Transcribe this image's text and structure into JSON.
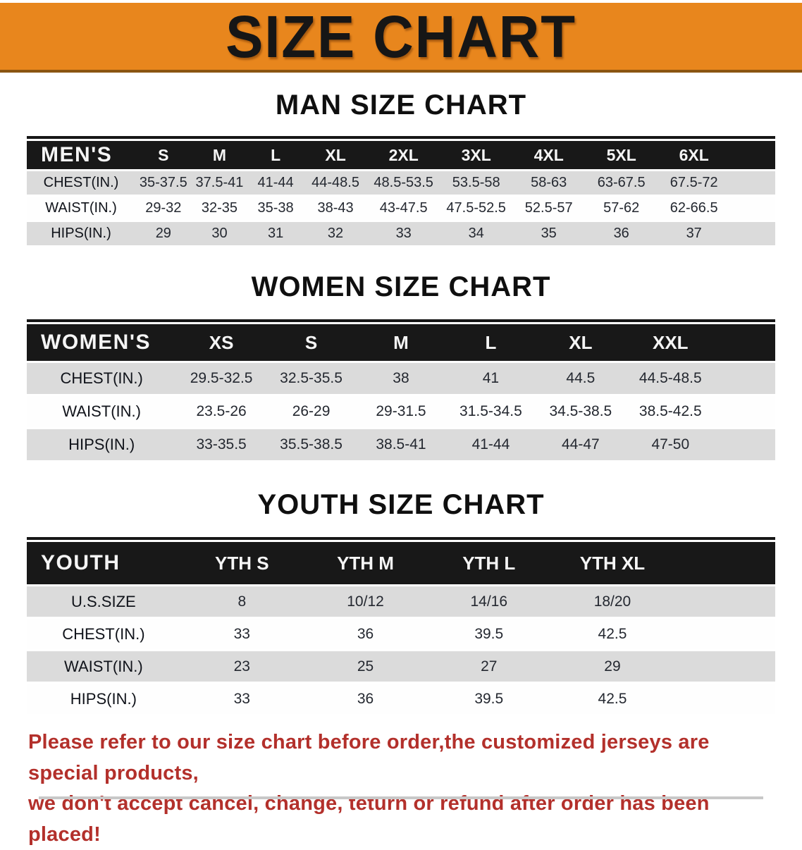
{
  "banner": {
    "title": "SIZE CHART",
    "bg_color": "#E8861D",
    "text_color": "#161616"
  },
  "sections": [
    {
      "heading": "MAN SIZE CHART",
      "table": {
        "name": "mens-size-table",
        "header_label": "MEN'S",
        "columns": [
          "S",
          "M",
          "L",
          "XL",
          "2XL",
          "3XL",
          "4XL",
          "5XL",
          "6XL"
        ],
        "rows": [
          {
            "label": "CHEST(IN.)",
            "values": [
              "35-37.5",
              "37.5-41",
              "41-44",
              "44-48.5",
              "48.5-53.5",
              "53.5-58",
              "58-63",
              "63-67.5",
              "67.5-72"
            ]
          },
          {
            "label": "WAIST(IN.)",
            "values": [
              "29-32",
              "32-35",
              "35-38",
              "38-43",
              "43-47.5",
              "47.5-52.5",
              "52.5-57",
              "57-62",
              "62-66.5"
            ]
          },
          {
            "label": "HIPS(IN.)",
            "values": [
              "29",
              "30",
              "31",
              "32",
              "33",
              "34",
              "35",
              "36",
              "37"
            ]
          }
        ]
      }
    },
    {
      "heading": "WOMEN SIZE CHART",
      "table": {
        "name": "womens-size-table",
        "header_label": "WOMEN'S",
        "columns": [
          "XS",
          "S",
          "M",
          "L",
          "XL",
          "XXL"
        ],
        "rows": [
          {
            "label": "CHEST(IN.)",
            "values": [
              "29.5-32.5",
              "32.5-35.5",
              "38",
              "41",
              "44.5",
              "44.5-48.5"
            ]
          },
          {
            "label": "WAIST(IN.)",
            "values": [
              "23.5-26",
              "26-29",
              "29-31.5",
              "31.5-34.5",
              "34.5-38.5",
              "38.5-42.5"
            ]
          },
          {
            "label": "HIPS(IN.)",
            "values": [
              "33-35.5",
              "35.5-38.5",
              "38.5-41",
              "41-44",
              "44-47",
              "47-50"
            ]
          }
        ]
      }
    },
    {
      "heading": "YOUTH SIZE CHART",
      "table": {
        "name": "youth-size-table",
        "header_label": "YOUTH",
        "columns": [
          "YTH S",
          "YTH M",
          "YTH L",
          "YTH XL"
        ],
        "rows": [
          {
            "label": "U.S.SIZE",
            "values": [
              "8",
              "10/12",
              "14/16",
              "18/20"
            ]
          },
          {
            "label": "CHEST(IN.)",
            "values": [
              "33",
              "36",
              "39.5",
              "42.5"
            ]
          },
          {
            "label": "WAIST(IN.)",
            "values": [
              "23",
              "25",
              "27",
              "29"
            ]
          },
          {
            "label": "HIPS(IN.)",
            "values": [
              "33",
              "36",
              "39.5",
              "42.5"
            ]
          }
        ]
      }
    }
  ],
  "disclaimer": {
    "line1": "Please refer to our size chart before order,the customized jerseys are special products,",
    "line2": "we don't accept cancel, change, teturn or refund after order has been placed!",
    "color": "#B3302B"
  }
}
